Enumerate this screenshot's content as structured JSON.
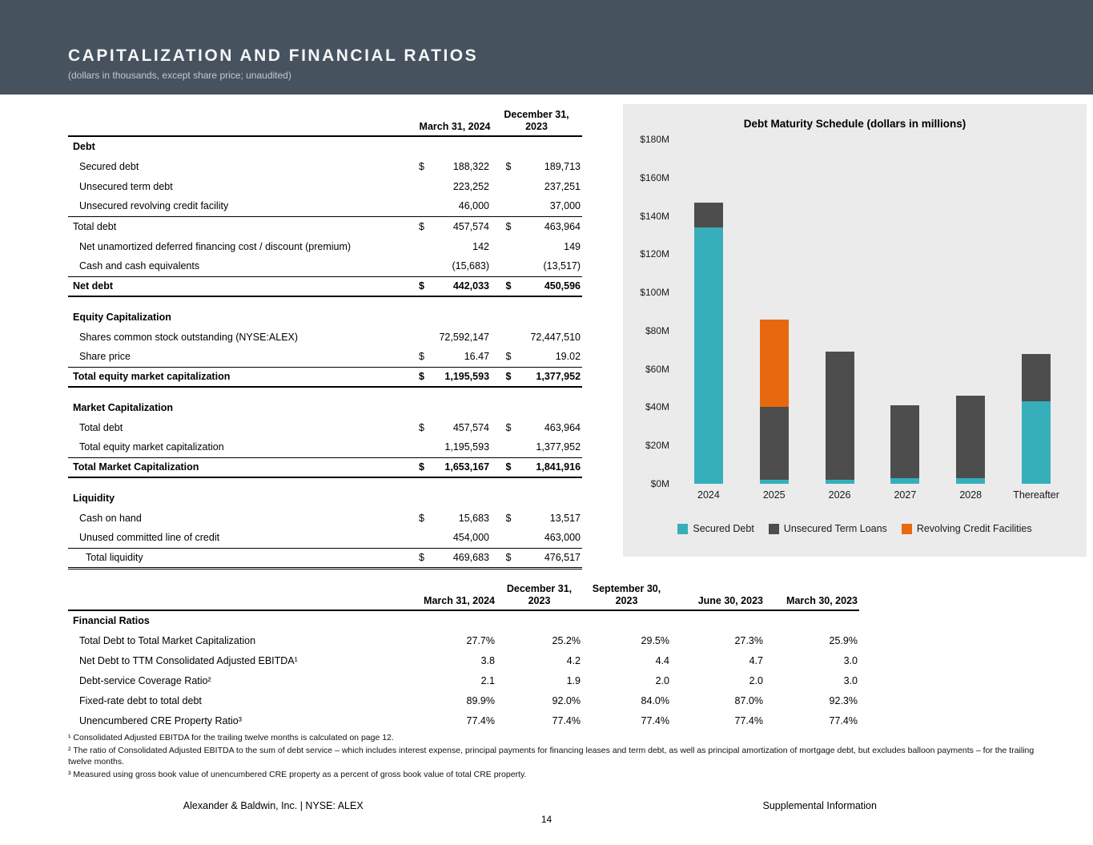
{
  "header": {
    "title": "CAPITALIZATION AND FINANCIAL RATIOS",
    "subtitle": "(dollars in thousands, except share price; unaudited)"
  },
  "colors": {
    "header_band": "#46525E",
    "chart_panel_background": "#EBEBEB",
    "secured_debt": "#36AFBA",
    "unsecured_term_loans": "#4D4D4D",
    "revolving_credit_facilities": "#E6690F"
  },
  "cap_table": {
    "columns": [
      "March 31, 2024",
      "December 31,\n2023"
    ],
    "rows": [
      {
        "kind": "section",
        "label": "Debt"
      },
      {
        "kind": "item",
        "indent": 1,
        "label": "Secured debt",
        "d1": "$",
        "v1": "188,322",
        "d2": "$",
        "v2": "189,713"
      },
      {
        "kind": "item",
        "indent": 1,
        "label": "Unsecured term debt",
        "v1": "223,252",
        "v2": "237,251"
      },
      {
        "kind": "item",
        "indent": 1,
        "label": "Unsecured revolving credit facility",
        "v1": "46,000",
        "v2": "37,000",
        "rule": "single"
      },
      {
        "kind": "item",
        "indent": 0,
        "label": "Total debt",
        "d1": "$",
        "v1": "457,574",
        "d2": "$",
        "v2": "463,964"
      },
      {
        "kind": "item",
        "indent": 1,
        "label": "Net unamortized deferred financing cost / discount (premium)",
        "v1": "142",
        "v2": "149"
      },
      {
        "kind": "item",
        "indent": 1,
        "label": "Cash and cash equivalents",
        "v1": "(15,683)",
        "v2": "(13,517)",
        "rule": "single"
      },
      {
        "kind": "total",
        "indent": 0,
        "label": "Net debt",
        "d1": "$",
        "v1": "442,033",
        "d2": "$",
        "v2": "450,596",
        "rule": "heavy"
      },
      {
        "kind": "spacer"
      },
      {
        "kind": "section",
        "label": "Equity Capitalization"
      },
      {
        "kind": "item",
        "indent": 1,
        "label": "Shares common stock outstanding (NYSE:ALEX)",
        "v1": "72,592,147",
        "v2": "72,447,510"
      },
      {
        "kind": "item",
        "indent": 1,
        "label": "Share price",
        "d1": "$",
        "v1": "16.47",
        "d2": "$",
        "v2": "19.02",
        "rule": "single"
      },
      {
        "kind": "total",
        "indent": 0,
        "label": "Total equity market capitalization",
        "d1": "$",
        "v1": "1,195,593",
        "d2": "$",
        "v2": "1,377,952",
        "rule": "heavy"
      },
      {
        "kind": "spacer"
      },
      {
        "kind": "section",
        "label": "Market Capitalization"
      },
      {
        "kind": "item",
        "indent": 1,
        "label": "Total debt",
        "d1": "$",
        "v1": "457,574",
        "d2": "$",
        "v2": "463,964"
      },
      {
        "kind": "item",
        "indent": 1,
        "label": "Total equity market capitalization",
        "v1": "1,195,593",
        "v2": "1,377,952",
        "rule": "single"
      },
      {
        "kind": "total",
        "indent": 0,
        "label": "Total Market Capitalization",
        "d1": "$",
        "v1": "1,653,167",
        "d2": "$",
        "v2": "1,841,916",
        "rule": "heavy"
      },
      {
        "kind": "spacer"
      },
      {
        "kind": "section",
        "label": "Liquidity"
      },
      {
        "kind": "item",
        "indent": 1,
        "label": "Cash on hand",
        "d1": "$",
        "v1": "15,683",
        "d2": "$",
        "v2": "13,517"
      },
      {
        "kind": "item",
        "indent": 1,
        "label": "Unused committed line of credit",
        "v1": "454,000",
        "v2": "463,000",
        "rule": "single"
      },
      {
        "kind": "item",
        "indent": 2,
        "label": "Total liquidity",
        "d1": "$",
        "v1": "469,683",
        "d2": "$",
        "v2": "476,517",
        "rule": "double"
      }
    ]
  },
  "chart_data": {
    "type": "bar",
    "stacked": true,
    "title": "Debt Maturity Schedule (dollars in millions)",
    "categories": [
      "2024",
      "2025",
      "2026",
      "2027",
      "2028",
      "Thereafter"
    ],
    "series": [
      {
        "name": "Secured Debt",
        "color": "#36AFBA",
        "values": [
          134,
          2,
          2,
          3,
          3,
          43
        ]
      },
      {
        "name": "Unsecured Term Loans",
        "color": "#4D4D4D",
        "values": [
          13,
          38,
          67,
          38,
          43,
          25
        ]
      },
      {
        "name": "Revolving Credit Facilities",
        "color": "#E6690F",
        "values": [
          0,
          46,
          0,
          0,
          0,
          0
        ]
      }
    ],
    "ylim": [
      0,
      180
    ],
    "yticks": [
      {
        "value": 0,
        "label": "$0M"
      },
      {
        "value": 20,
        "label": "$20M"
      },
      {
        "value": 40,
        "label": "$40M"
      },
      {
        "value": 60,
        "label": "$60M"
      },
      {
        "value": 80,
        "label": "$80M"
      },
      {
        "value": 100,
        "label": "$100M"
      },
      {
        "value": 120,
        "label": "$120M"
      },
      {
        "value": 140,
        "label": "$140M"
      },
      {
        "value": 160,
        "label": "$160M"
      },
      {
        "value": 180,
        "label": "$180M"
      }
    ],
    "grid": false,
    "legend_position": "bottom"
  },
  "ratios_table": {
    "columns": [
      "March 31, 2024",
      "December 31,\n2023",
      "September 30,\n2023",
      "June 30, 2023",
      "March 30, 2023"
    ],
    "section": "Financial Ratios",
    "rows": [
      {
        "label": "Total Debt to Total Market Capitalization",
        "values": [
          "27.7%",
          "25.2%",
          "29.5%",
          "27.3%",
          "25.9%"
        ]
      },
      {
        "label": "Net Debt to TTM Consolidated Adjusted EBITDA¹",
        "values": [
          "3.8",
          "4.2",
          "4.4",
          "4.7",
          "3.0"
        ]
      },
      {
        "label": "Debt-service Coverage Ratio²",
        "values": [
          "2.1",
          "1.9",
          "2.0",
          "2.0",
          "3.0"
        ]
      },
      {
        "label": "Fixed-rate debt to total debt",
        "values": [
          "89.9%",
          "92.0%",
          "84.0%",
          "87.0%",
          "92.3%"
        ]
      },
      {
        "label": "Unencumbered CRE Property Ratio³",
        "values": [
          "77.4%",
          "77.4%",
          "77.4%",
          "77.4%",
          "77.4%"
        ]
      }
    ]
  },
  "footnotes": [
    "¹ Consolidated Adjusted EBITDA for the trailing twelve months is calculated on page 12.",
    "² The ratio of Consolidated Adjusted EBITDA to the sum of debt service – which includes interest expense, principal payments for financing leases and term debt, as well as principal amortization of mortgage debt, but excludes balloon payments – for the trailing twelve months.",
    "³ Measured using gross book value of unencumbered CRE property as a percent of gross book value of total CRE property."
  ],
  "page": {
    "footer_left": "Alexander & Baldwin, Inc. | NYSE: ALEX",
    "footer_right": "Supplemental Information",
    "number": "14"
  }
}
